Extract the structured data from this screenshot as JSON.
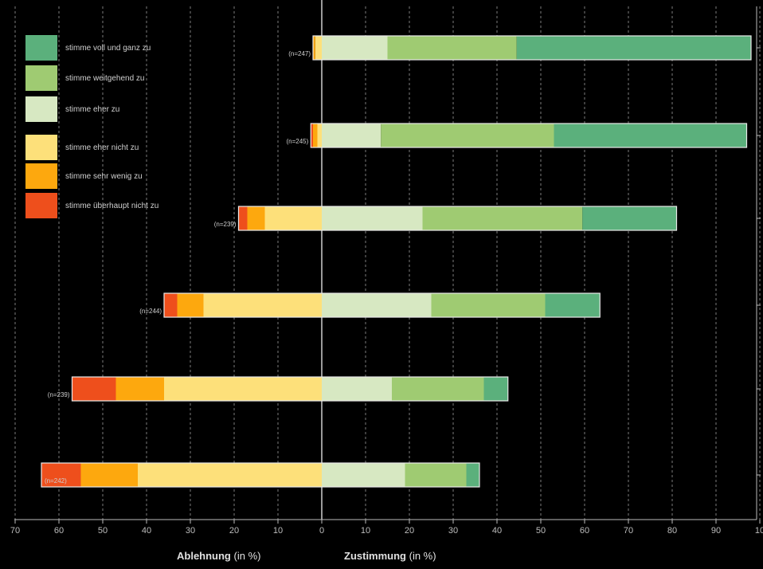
{
  "chart_data": {
    "type": "bar",
    "orientation": "horizontal",
    "stacked": "diverging",
    "xlim": [
      -70,
      100
    ],
    "x_ticks": [
      "70",
      "60",
      "50",
      "40",
      "30",
      "20",
      "10",
      "0",
      "10",
      "20",
      "30",
      "40",
      "50",
      "60",
      "70",
      "80",
      "90",
      "10"
    ],
    "xlabel_left": "Ablehnung",
    "xlabel_left_unit": "(in %)",
    "xlabel_right": "Zustimmung",
    "xlabel_right_unit": "(in %)",
    "grid": true,
    "legend_position": "top-left",
    "categories": [
      "(n=247)",
      "(n=245)",
      "(n=239)",
      "(n=244)",
      "(n=239)",
      "(n=242)"
    ],
    "series": [
      {
        "name": "stimme voll und ganz zu",
        "color": "#5bb07c",
        "side": "positive",
        "values": [
          53.5,
          44,
          21.5,
          12.5,
          5.5,
          3
        ]
      },
      {
        "name": "stimme weitgehend zu",
        "color": "#9fcb72",
        "side": "positive",
        "values": [
          29.5,
          39.5,
          36.5,
          26,
          21,
          14
        ]
      },
      {
        "name": "stimme eher zu",
        "color": "#d7e8c2",
        "side": "positive",
        "values": [
          15,
          13.5,
          23,
          25,
          16,
          19
        ]
      },
      {
        "name": "stimme eher nicht zu",
        "color": "#fde07a",
        "side": "negative",
        "values": [
          1.5,
          1,
          13,
          27,
          36,
          42
        ]
      },
      {
        "name": "stimme sehr wenig zu",
        "color": "#fda80e",
        "side": "negative",
        "values": [
          0.5,
          1,
          4,
          6,
          11,
          13
        ]
      },
      {
        "name": "stimme überhaupt nicht zu",
        "color": "#ee4f1c",
        "side": "negative",
        "values": [
          0,
          0.5,
          2,
          3,
          10,
          9
        ]
      }
    ]
  }
}
